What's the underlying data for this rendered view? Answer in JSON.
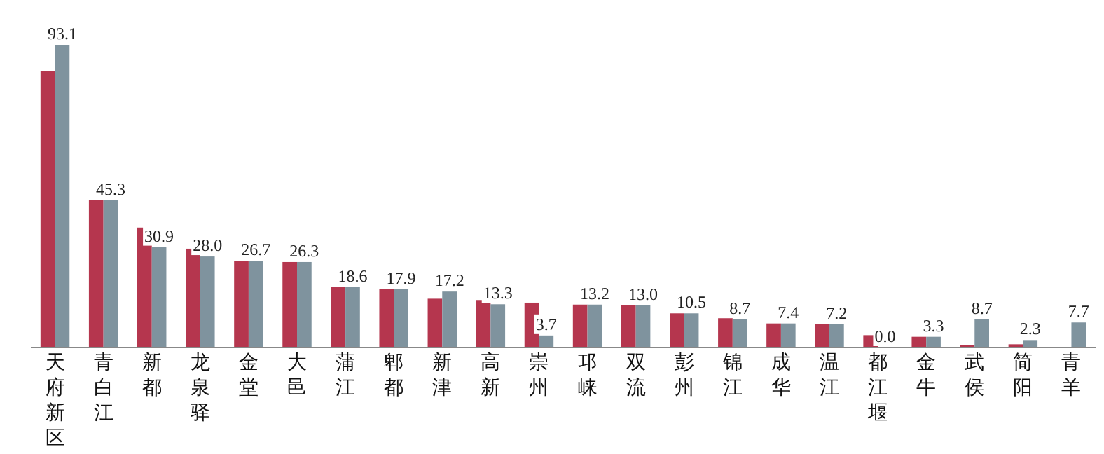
{
  "chart_data": {
    "type": "bar",
    "categories": [
      "天府新区",
      "青白江",
      "新都",
      "龙泉驿",
      "金堂",
      "大邑",
      "蒲江",
      "郫都",
      "新津",
      "高新",
      "崇州",
      "邛崃",
      "双流",
      "彭州",
      "锦江",
      "成华",
      "温江",
      "都江堰",
      "金牛",
      "武侯",
      "简阳",
      "青羊"
    ],
    "series": [
      {
        "color": "#b5364e",
        "values": [
          85.0,
          45.3,
          36.9,
          30.4,
          26.7,
          26.3,
          18.6,
          17.9,
          15.0,
          14.6,
          13.8,
          13.2,
          13.0,
          10.5,
          9.0,
          7.4,
          7.2,
          3.8,
          3.3,
          0.8,
          1.0,
          0
        ]
      },
      {
        "color": "#7f939e",
        "values": [
          93.1,
          45.3,
          30.9,
          28.0,
          26.7,
          26.3,
          18.6,
          17.9,
          17.2,
          13.3,
          3.7,
          13.2,
          13.0,
          10.5,
          8.7,
          7.4,
          7.2,
          0.0,
          3.3,
          8.7,
          2.3,
          7.7
        ],
        "value_labels": [
          "93.1",
          "45.3",
          "30.9",
          "28.0",
          "26.7",
          "26.3",
          "18.6",
          "17.9",
          "17.2",
          "13.3",
          "3.7",
          "13.2",
          "13.0",
          "10.5",
          "8.7",
          "7.4",
          "7.2",
          "0.0",
          "3.3",
          "8.7",
          "2.3",
          "7.7"
        ]
      }
    ]
  }
}
